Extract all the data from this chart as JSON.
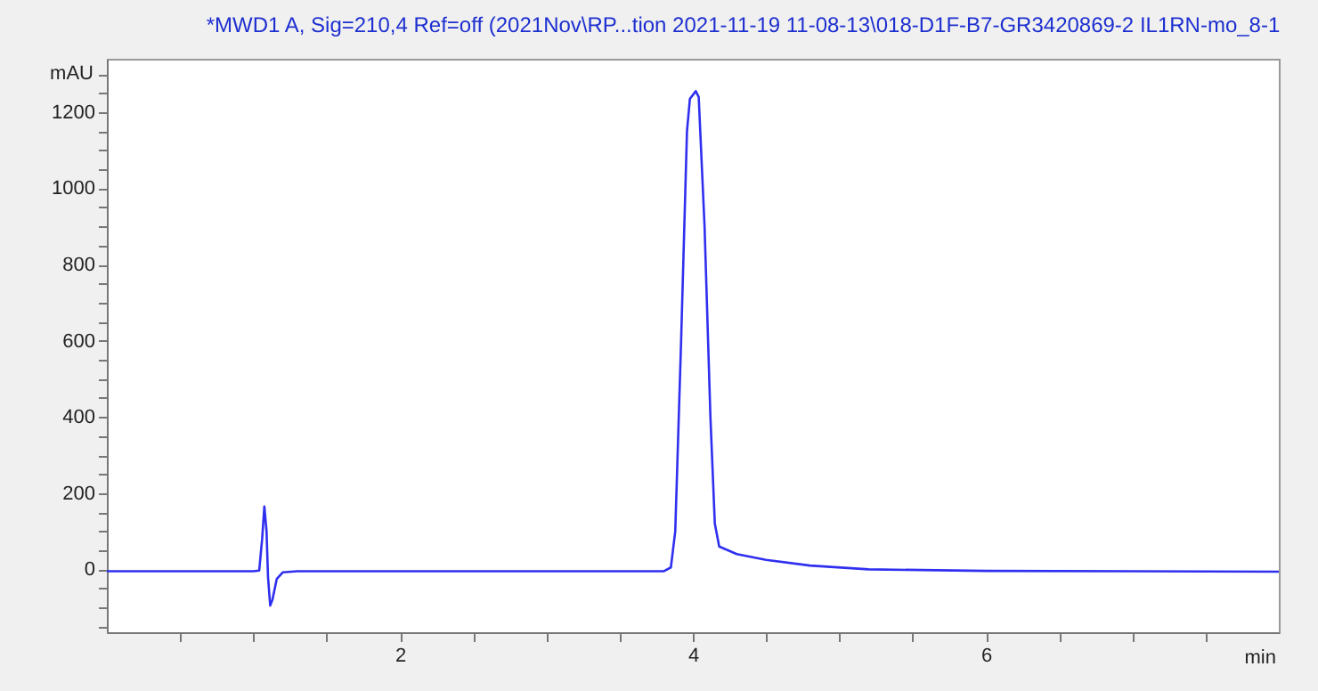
{
  "chart_data": {
    "type": "line",
    "title": "*MWD1 A, Sig=210,4 Ref=off (2021Nov\\RP...tion 2021-11-19 11-08-13\\018-D1F-B7-GR3420869-2 IL1RN-mo_8-1",
    "xlabel": "min",
    "ylabel": "mAU",
    "xlim": [
      0,
      8
    ],
    "ylim": [
      -165,
      1340
    ],
    "xticks": [
      {
        "value": 0.5,
        "label": null
      },
      {
        "value": 1,
        "label": null
      },
      {
        "value": 1.5,
        "label": null
      },
      2,
      {
        "value": 2.5,
        "label": null
      },
      {
        "value": 3,
        "label": null
      },
      {
        "value": 3.5,
        "label": null
      },
      4,
      {
        "value": 4.5,
        "label": null
      },
      {
        "value": 5,
        "label": null
      },
      {
        "value": 5.5,
        "label": null
      },
      6,
      {
        "value": 6.5,
        "label": null
      },
      {
        "value": 7,
        "label": null
      },
      {
        "value": 7.5,
        "label": null
      }
    ],
    "yticks": [
      {
        "value": -150,
        "label": null
      },
      {
        "value": -100,
        "label": null
      },
      {
        "value": -50,
        "label": null
      },
      0,
      {
        "value": 50,
        "label": null
      },
      {
        "value": 100,
        "label": null
      },
      {
        "value": 150,
        "label": null
      },
      200,
      {
        "value": 250,
        "label": null
      },
      {
        "value": 300,
        "label": null
      },
      {
        "value": 350,
        "label": null
      },
      400,
      {
        "value": 450,
        "label": null
      },
      {
        "value": 500,
        "label": null
      },
      {
        "value": 550,
        "label": null
      },
      600,
      {
        "value": 650,
        "label": null
      },
      {
        "value": 700,
        "label": null
      },
      {
        "value": 750,
        "label": null
      },
      800,
      {
        "value": 850,
        "label": null
      },
      {
        "value": 900,
        "label": null
      },
      {
        "value": 950,
        "label": null
      },
      1000,
      {
        "value": 1050,
        "label": null
      },
      {
        "value": 1100,
        "label": null
      },
      {
        "value": 1150,
        "label": null
      },
      1200,
      {
        "value": 1250,
        "label": null
      },
      {
        "value": 1300,
        "label": null
      }
    ],
    "grid": false,
    "marker": "none",
    "line_style": "solid",
    "series": [
      {
        "color": "#2f2ff0",
        "x": [
          0,
          1.0,
          1.04,
          1.06,
          1.075,
          1.09,
          1.1,
          1.115,
          1.13,
          1.16,
          1.2,
          1.3,
          2,
          3,
          3.8,
          3.85,
          3.88,
          3.92,
          3.96,
          3.98,
          4.02,
          4.04,
          4.08,
          4.12,
          4.15,
          4.18,
          4.3,
          4.5,
          4.8,
          5.2,
          6,
          7,
          8
        ],
        "values": [
          -5,
          -5,
          -3,
          80,
          165,
          100,
          -20,
          -95,
          -80,
          -25,
          -8,
          -5,
          -5,
          -5,
          -5,
          5,
          100,
          600,
          1150,
          1235,
          1255,
          1240,
          900,
          400,
          120,
          60,
          40,
          25,
          10,
          0,
          -4,
          -5,
          -6
        ]
      }
    ]
  }
}
